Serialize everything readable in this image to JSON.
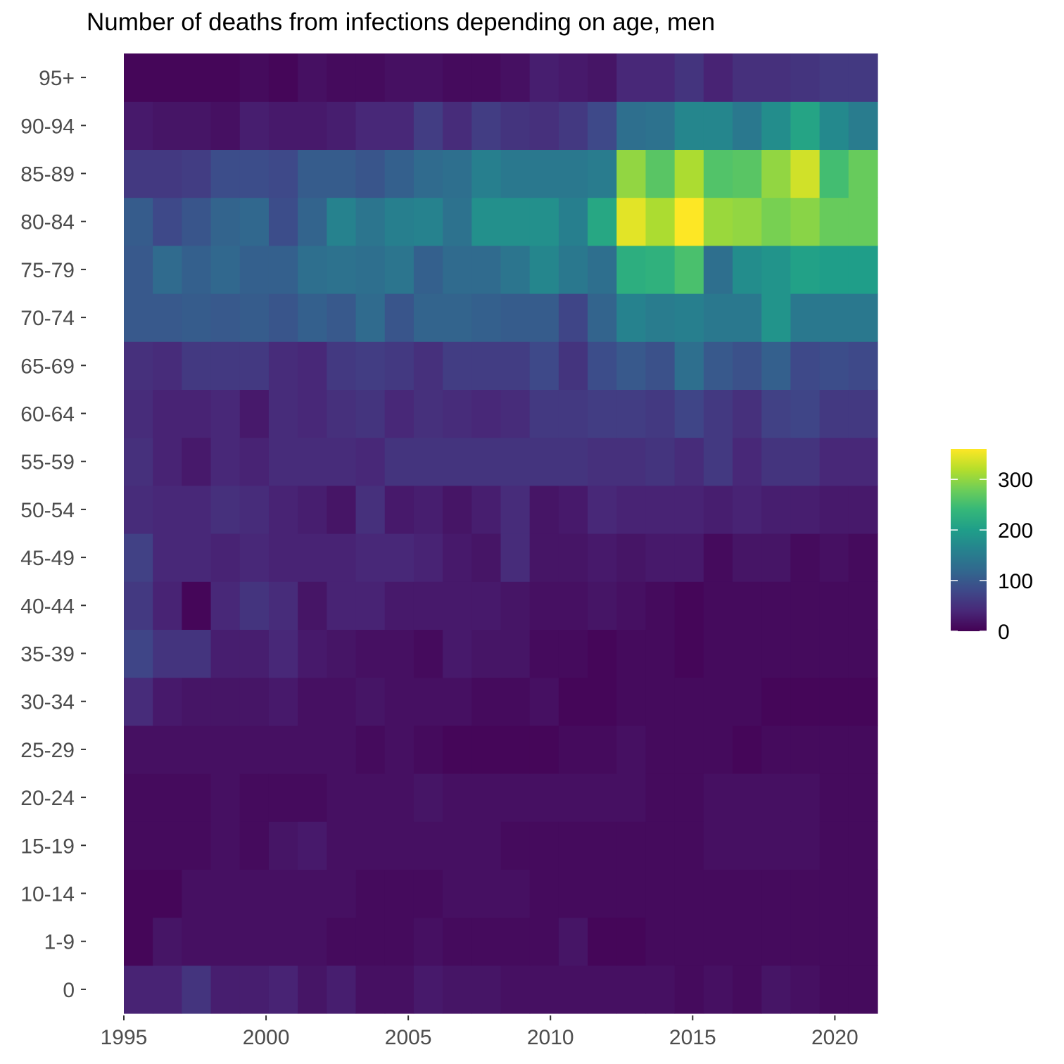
{
  "chart_data": {
    "type": "heatmap",
    "title": "Number of deaths from infections depending on age, men",
    "xlabel": "",
    "ylabel": "",
    "x": [
      1996,
      1997,
      1998,
      1999,
      2000,
      2001,
      2002,
      2003,
      2004,
      2005,
      2006,
      2007,
      2008,
      2009,
      2010,
      2011,
      2012,
      2013,
      2014,
      2015,
      2016,
      2017,
      2018,
      2019,
      2020,
      2021
    ],
    "x_ticks": [
      1995,
      2000,
      2005,
      2010,
      2015,
      2020
    ],
    "xlim": [
      1995,
      2021.5
    ],
    "y": [
      "0",
      "1-9",
      "10-14",
      "15-19",
      "20-24",
      "25-29",
      "30-34",
      "35-39",
      "40-44",
      "45-49",
      "50-54",
      "55-59",
      "60-64",
      "65-69",
      "70-74",
      "75-79",
      "80-84",
      "85-89",
      "90-94",
      "95+"
    ],
    "values": [
      [
        35,
        35,
        55,
        30,
        30,
        35,
        20,
        30,
        15,
        15,
        25,
        20,
        20,
        15,
        15,
        15,
        15,
        15,
        15,
        10,
        15,
        10,
        20,
        15,
        10,
        10
      ],
      [
        5,
        20,
        15,
        15,
        15,
        15,
        15,
        10,
        10,
        10,
        15,
        10,
        10,
        10,
        10,
        20,
        5,
        5,
        10,
        10,
        10,
        10,
        10,
        10,
        10,
        10
      ],
      [
        5,
        5,
        15,
        15,
        15,
        15,
        15,
        15,
        10,
        10,
        10,
        15,
        15,
        15,
        10,
        10,
        10,
        10,
        10,
        10,
        10,
        10,
        10,
        10,
        10,
        10
      ],
      [
        10,
        10,
        10,
        15,
        10,
        20,
        25,
        15,
        15,
        15,
        15,
        15,
        15,
        10,
        10,
        10,
        10,
        10,
        10,
        10,
        15,
        15,
        15,
        15,
        10,
        10
      ],
      [
        10,
        10,
        10,
        15,
        10,
        10,
        10,
        15,
        15,
        15,
        20,
        15,
        15,
        15,
        15,
        15,
        15,
        15,
        10,
        10,
        15,
        15,
        15,
        15,
        10,
        10
      ],
      [
        15,
        15,
        15,
        15,
        15,
        15,
        15,
        15,
        10,
        15,
        10,
        5,
        5,
        5,
        5,
        10,
        10,
        15,
        10,
        10,
        10,
        5,
        10,
        10,
        10,
        10
      ],
      [
        45,
        25,
        20,
        20,
        20,
        25,
        15,
        15,
        20,
        15,
        15,
        15,
        10,
        10,
        15,
        5,
        5,
        10,
        10,
        10,
        10,
        10,
        5,
        5,
        5,
        5
      ],
      [
        75,
        55,
        55,
        30,
        30,
        40,
        25,
        20,
        15,
        15,
        10,
        25,
        20,
        20,
        10,
        10,
        5,
        10,
        10,
        5,
        10,
        10,
        10,
        10,
        10,
        10
      ],
      [
        60,
        35,
        5,
        40,
        55,
        45,
        20,
        35,
        35,
        25,
        25,
        25,
        25,
        20,
        15,
        15,
        20,
        15,
        10,
        5,
        10,
        10,
        10,
        10,
        10,
        10
      ],
      [
        70,
        40,
        40,
        35,
        40,
        35,
        35,
        35,
        40,
        40,
        35,
        25,
        20,
        45,
        20,
        20,
        25,
        20,
        25,
        25,
        10,
        20,
        20,
        10,
        15,
        10
      ],
      [
        45,
        40,
        40,
        50,
        45,
        35,
        30,
        20,
        50,
        25,
        30,
        20,
        30,
        45,
        20,
        25,
        40,
        35,
        35,
        35,
        30,
        35,
        30,
        30,
        25,
        25
      ],
      [
        50,
        35,
        25,
        40,
        35,
        45,
        45,
        45,
        40,
        55,
        55,
        55,
        55,
        55,
        55,
        55,
        50,
        50,
        55,
        45,
        60,
        40,
        55,
        55,
        40,
        40
      ],
      [
        45,
        35,
        35,
        40,
        25,
        45,
        40,
        50,
        55,
        40,
        50,
        45,
        40,
        45,
        60,
        60,
        65,
        65,
        60,
        75,
        60,
        50,
        70,
        75,
        60,
        60
      ],
      [
        50,
        45,
        60,
        60,
        60,
        45,
        40,
        60,
        65,
        60,
        50,
        65,
        65,
        65,
        80,
        55,
        85,
        100,
        90,
        130,
        100,
        90,
        110,
        80,
        85,
        80
      ],
      [
        100,
        100,
        105,
        100,
        105,
        95,
        110,
        100,
        125,
        95,
        115,
        115,
        110,
        105,
        105,
        75,
        115,
        160,
        150,
        155,
        145,
        145,
        185,
        145,
        145,
        145
      ],
      [
        100,
        125,
        110,
        120,
        110,
        110,
        130,
        135,
        130,
        140,
        110,
        125,
        125,
        140,
        165,
        145,
        130,
        225,
        230,
        255,
        130,
        175,
        185,
        205,
        200,
        200
      ],
      [
        105,
        80,
        95,
        115,
        120,
        85,
        115,
        160,
        140,
        155,
        160,
        135,
        180,
        180,
        180,
        155,
        215,
        345,
        315,
        360,
        305,
        300,
        285,
        295,
        275,
        275
      ],
      [
        60,
        60,
        65,
        85,
        85,
        80,
        105,
        105,
        95,
        110,
        125,
        130,
        155,
        145,
        145,
        145,
        150,
        300,
        265,
        315,
        260,
        265,
        300,
        335,
        250,
        275
      ],
      [
        25,
        20,
        20,
        15,
        30,
        25,
        25,
        30,
        40,
        40,
        65,
        45,
        65,
        55,
        50,
        60,
        80,
        130,
        135,
        165,
        165,
        145,
        175,
        210,
        170,
        150
      ],
      [
        5,
        5,
        5,
        5,
        10,
        5,
        15,
        10,
        10,
        15,
        15,
        10,
        10,
        15,
        30,
        25,
        20,
        40,
        40,
        55,
        35,
        50,
        50,
        55,
        60,
        60
      ]
    ],
    "legend": {
      "placement": "right",
      "min": 0,
      "max": 360,
      "ticks": [
        0,
        100,
        200,
        300
      ]
    },
    "colormap": [
      "#440154",
      "#482878",
      "#3e4989",
      "#31688e",
      "#26828e",
      "#1f9e89",
      "#35b779",
      "#6ece58",
      "#b5de2b",
      "#fde725"
    ],
    "grid": false
  }
}
